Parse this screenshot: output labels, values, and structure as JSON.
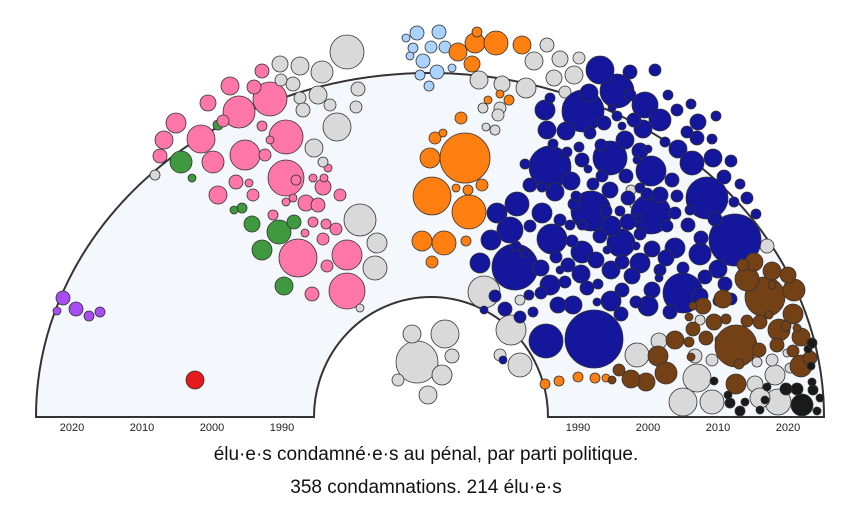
{
  "chart_data": {
    "type": "scatter",
    "subtype": "circle-packing-hemicycle",
    "title": "élu·e·s condamné·e·s au pénal, par parti politique.",
    "subtitle": "358 condamnations. 214 élu·e·s",
    "left_axis_ticks": [
      "2020",
      "2010",
      "2000",
      "1990"
    ],
    "right_axis_ticks": [
      "1990",
      "2000",
      "2010",
      "2020"
    ],
    "grid": false,
    "colors": {
      "pink": "#ff77a9",
      "green": "#3f9a3f",
      "gray": "#d9d9d9",
      "lightblue": "#a9d2ff",
      "orange": "#ff7f10",
      "navy": "#14169b",
      "brown": "#744015",
      "black": "#1a1a1a",
      "purple": "#a64cf0",
      "red": "#e41a1c",
      "background": "#f4f7fb",
      "stroke": "#333333"
    }
  }
}
